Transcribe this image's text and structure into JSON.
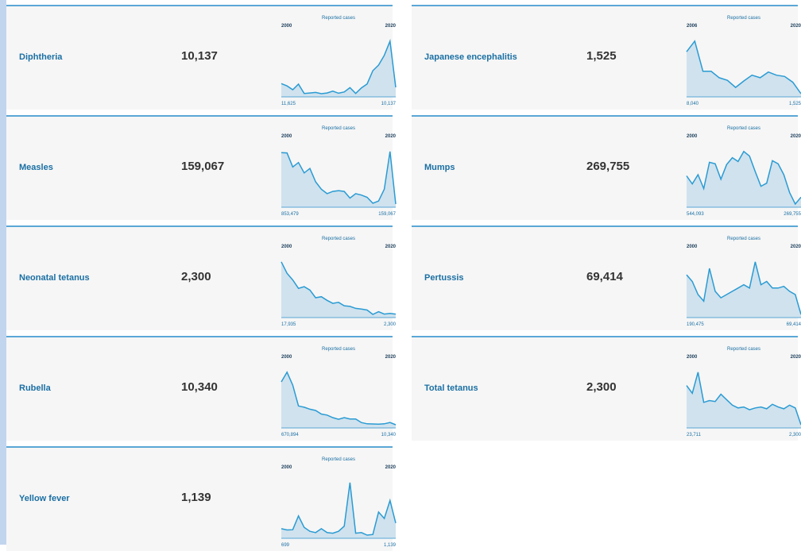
{
  "cards": [
    {
      "name": "Diphtheria",
      "value": "10,137",
      "chart": {
        "type": "line",
        "title": "Reported cases",
        "start_year": "2000",
        "end_year": "2020",
        "start_label": "11,625",
        "end_label": "10,137",
        "values": [
          11625,
          10700,
          9200,
          11400,
          7700,
          7900,
          8100,
          7600,
          7900,
          8600,
          7800,
          8300,
          10000,
          7700,
          9900,
          11500,
          16800,
          19000,
          22900,
          28600,
          10137
        ]
      }
    },
    {
      "name": "Japanese encephalitis",
      "value": "1,525",
      "chart": {
        "type": "line",
        "title": "Reported cases",
        "start_year": "2006",
        "end_year": "2020",
        "start_label": "8,040",
        "end_label": "1,525",
        "values": [
          8040,
          9700,
          5000,
          5000,
          4000,
          3600,
          2500,
          3500,
          4400,
          4000,
          4900,
          4400,
          4200,
          3300,
          1525
        ]
      }
    },
    {
      "name": "Measles",
      "value": "159,067",
      "chart": {
        "type": "line",
        "title": "Reported cases",
        "start_year": "2000",
        "end_year": "2020",
        "start_label": "853,479",
        "end_label": "159,067",
        "values": [
          853479,
          850000,
          660000,
          720000,
          580000,
          640000,
          460000,
          360000,
          300000,
          330000,
          340000,
          330000,
          240000,
          300000,
          280000,
          250000,
          170000,
          200000,
          360000,
          870000,
          159067
        ]
      }
    },
    {
      "name": "Mumps",
      "value": "269,755",
      "chart": {
        "type": "line",
        "title": "Reported cases",
        "start_year": "2000",
        "end_year": "2020",
        "start_label": "544,093",
        "end_label": "269,755",
        "values": [
          544093,
          440000,
          560000,
          380000,
          720000,
          700000,
          500000,
          690000,
          780000,
          730000,
          860000,
          800000,
          600000,
          410000,
          450000,
          740000,
          700000,
          560000,
          330000,
          180000,
          269755
        ]
      }
    },
    {
      "name": "Neonatal tetanus",
      "value": "2,300",
      "chart": {
        "type": "line",
        "title": "Reported cases",
        "start_year": "2000",
        "end_year": "2020",
        "start_label": "17,935",
        "end_label": "2,300",
        "values": [
          17935,
          14500,
          12500,
          10000,
          10500,
          9500,
          7200,
          7500,
          6400,
          5500,
          5800,
          4800,
          4600,
          4000,
          3800,
          3500,
          2200,
          3000,
          2300,
          2500,
          2300
        ]
      }
    },
    {
      "name": "Pertussis",
      "value": "69,414",
      "chart": {
        "type": "line",
        "title": "Reported cases",
        "start_year": "2000",
        "end_year": "2020",
        "start_label": "190,475",
        "end_label": "69,414",
        "values": [
          190475,
          170000,
          130000,
          110000,
          210000,
          140000,
          120000,
          130000,
          140000,
          150000,
          160000,
          150000,
          230000,
          160000,
          170000,
          150000,
          150000,
          155000,
          140000,
          130000,
          69414
        ]
      }
    },
    {
      "name": "Rubella",
      "value": "10,340",
      "chart": {
        "type": "line",
        "title": "Reported cases",
        "start_year": "2000",
        "end_year": "2020",
        "start_label": "670,894",
        "end_label": "10,340",
        "values": [
          670894,
          820000,
          620000,
          300000,
          280000,
          250000,
          230000,
          175000,
          160000,
          120000,
          95000,
          120000,
          100000,
          100000,
          45000,
          25000,
          22000,
          20000,
          25000,
          45000,
          10340
        ]
      }
    },
    {
      "name": "Total tetanus",
      "value": "2,300",
      "chart": {
        "type": "line",
        "title": "Reported cases",
        "start_year": "2000",
        "end_year": "2020",
        "start_label": "23,711",
        "end_label": "2,300",
        "values": [
          23711,
          19500,
          31000,
          14500,
          15500,
          15000,
          19000,
          16000,
          13000,
          11500,
          12000,
          10500,
          11500,
          12000,
          11000,
          13500,
          12000,
          11000,
          13000,
          11500,
          2300
        ]
      }
    },
    {
      "name": "Yellow fever",
      "value": "1,139",
      "chart": {
        "type": "line",
        "title": "Reported cases",
        "start_year": "2000",
        "end_year": "2020",
        "start_label": "699",
        "end_label": "1,139",
        "values": [
          699,
          600,
          620,
          1700,
          800,
          500,
          400,
          700,
          400,
          350,
          500,
          900,
          4300,
          350,
          400,
          200,
          250,
          2000,
          1500,
          2900,
          1139
        ]
      }
    }
  ]
}
